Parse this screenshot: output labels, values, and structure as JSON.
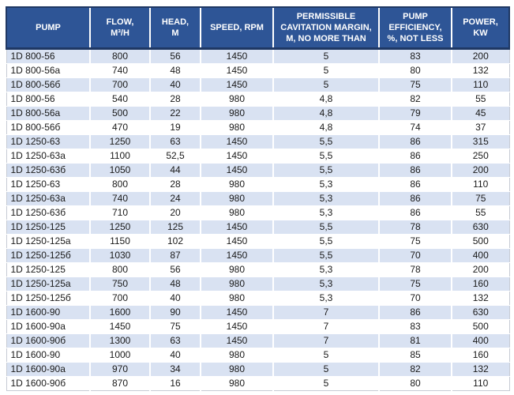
{
  "table": {
    "name": "pump-specifications",
    "columns": [
      "PUMP",
      "FLOW,\nM³/H",
      "HEAD,\nM",
      "SPEED, RPM",
      "PERMISSIBLE\nCAVITATION MARGIN,\nM, NO MORE THAN",
      "PUMP\nEFFICIENCY,\n%, NOT LESS",
      "POWER,\nKW"
    ],
    "rows": [
      [
        "1D 800-56",
        "800",
        "56",
        "1450",
        "5",
        "83",
        "200"
      ],
      [
        "1D 800-56a",
        "740",
        "48",
        "1450",
        "5",
        "80",
        "132"
      ],
      [
        "1D 800-56б",
        "700",
        "40",
        "1450",
        "5",
        "75",
        "110"
      ],
      [
        "1D 800-56",
        "540",
        "28",
        "980",
        "4,8",
        "82",
        "55"
      ],
      [
        "1D 800-56a",
        "500",
        "22",
        "980",
        "4,8",
        "79",
        "45"
      ],
      [
        "1D 800-56б",
        "470",
        "19",
        "980",
        "4,8",
        "74",
        "37"
      ],
      [
        "1D 1250-63",
        "1250",
        "63",
        "1450",
        "5,5",
        "86",
        "315"
      ],
      [
        "1D 1250-63a",
        "1100",
        "52,5",
        "1450",
        "5,5",
        "86",
        "250"
      ],
      [
        "1D 1250-63б",
        "1050",
        "44",
        "1450",
        "5,5",
        "86",
        "200"
      ],
      [
        "1D 1250-63",
        "800",
        "28",
        "980",
        "5,3",
        "86",
        "110"
      ],
      [
        "1D 1250-63a",
        "740",
        "24",
        "980",
        "5,3",
        "86",
        "75"
      ],
      [
        "1D 1250-63б",
        "710",
        "20",
        "980",
        "5,3",
        "86",
        "55"
      ],
      [
        "1D 1250-125",
        "1250",
        "125",
        "1450",
        "5,5",
        "78",
        "630"
      ],
      [
        "1D 1250-125a",
        "1150",
        "102",
        "1450",
        "5,5",
        "75",
        "500"
      ],
      [
        "1D 1250-125б",
        "1030",
        "87",
        "1450",
        "5,5",
        "70",
        "400"
      ],
      [
        "1D 1250-125",
        "800",
        "56",
        "980",
        "5,3",
        "78",
        "200"
      ],
      [
        "1D 1250-125a",
        "750",
        "48",
        "980",
        "5,3",
        "75",
        "160"
      ],
      [
        "1D 1250-125б",
        "700",
        "40",
        "980",
        "5,3",
        "70",
        "132"
      ],
      [
        "1D 1600-90",
        "1600",
        "90",
        "1450",
        "7",
        "86",
        "630"
      ],
      [
        "1D 1600-90a",
        "1450",
        "75",
        "1450",
        "7",
        "83",
        "500"
      ],
      [
        "1D 1600-90б",
        "1300",
        "63",
        "1450",
        "7",
        "81",
        "400"
      ],
      [
        "1D 1600-90",
        "1000",
        "40",
        "980",
        "5",
        "85",
        "160"
      ],
      [
        "1D 1600-90a",
        "970",
        "34",
        "980",
        "5",
        "82",
        "132"
      ],
      [
        "1D 1600-90б",
        "870",
        "16",
        "980",
        "5",
        "80",
        "110"
      ]
    ]
  },
  "colors": {
    "header_background": "#2E5596",
    "header_text": "#FFFFFF",
    "header_outline": "#1F3864",
    "row_band": "#D9E2F2",
    "row_plain": "#FFFFFF",
    "body_text": "#1A1A1A"
  }
}
